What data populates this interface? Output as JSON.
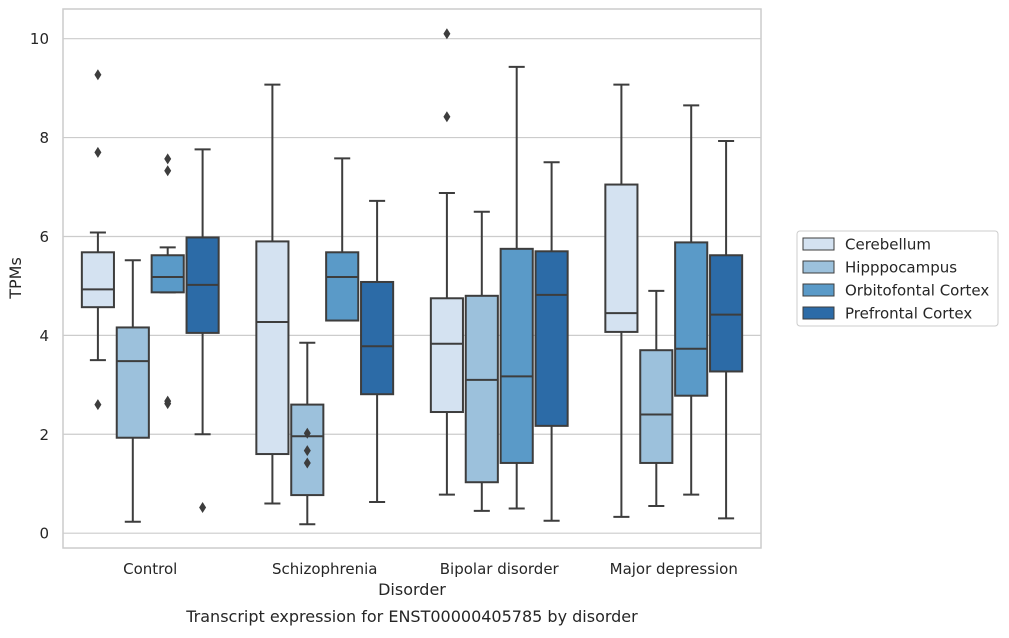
{
  "chart_data": {
    "type": "box",
    "title": "",
    "caption": "Transcript expression for ENST00000405785 by disorder",
    "xlabel": "Disorder",
    "ylabel": "TPMs",
    "ylim": [
      -0.3,
      10.6
    ],
    "yticks": [
      0,
      2,
      4,
      6,
      8,
      10
    ],
    "grid": "horizontal",
    "legend_position": "right",
    "categories": [
      "Control",
      "Schizophrenia",
      "Bipolar disorder",
      "Major depression"
    ],
    "series": [
      {
        "name": "Cerebellum",
        "color": "#d4e2f1",
        "boxes": [
          {
            "whislo": 3.5,
            "q1": 4.57,
            "med": 4.93,
            "q3": 5.68,
            "whishi": 6.08,
            "fliers": [
              9.27,
              7.7,
              2.6
            ]
          },
          {
            "whislo": 0.6,
            "q1": 1.6,
            "med": 4.27,
            "q3": 5.9,
            "whishi": 9.07,
            "fliers": []
          },
          {
            "whislo": 0.78,
            "q1": 2.45,
            "med": 3.83,
            "q3": 4.75,
            "whishi": 6.88,
            "fliers": [
              10.1,
              8.42
            ]
          },
          {
            "whislo": 0.33,
            "q1": 4.07,
            "med": 4.45,
            "q3": 7.05,
            "whishi": 9.07,
            "fliers": []
          }
        ]
      },
      {
        "name": "Hipppocampus",
        "color": "#9cc1dc",
        "boxes": [
          {
            "whislo": 0.23,
            "q1": 1.93,
            "med": 3.48,
            "q3": 4.16,
            "whishi": 5.52,
            "fliers": []
          },
          {
            "whislo": 0.18,
            "q1": 0.77,
            "med": 1.96,
            "q3": 2.6,
            "whishi": 3.85,
            "fliers": [
              2.02,
              1.67,
              1.42
            ]
          },
          {
            "whislo": 0.45,
            "q1": 1.03,
            "med": 3.1,
            "q3": 4.8,
            "whishi": 6.5,
            "fliers": []
          },
          {
            "whislo": 0.55,
            "q1": 1.42,
            "med": 2.4,
            "q3": 3.7,
            "whishi": 4.9,
            "fliers": []
          }
        ]
      },
      {
        "name": "Orbitofontal Cortex",
        "color": "#5a9ac8",
        "boxes": [
          {
            "whislo": 4.87,
            "q1": 4.87,
            "med": 5.18,
            "q3": 5.62,
            "whishi": 5.78,
            "fliers": [
              7.57,
              7.33,
              2.67,
              2.62
            ]
          },
          {
            "whislo": 4.3,
            "q1": 4.3,
            "med": 5.18,
            "q3": 5.68,
            "whishi": 7.58,
            "fliers": []
          },
          {
            "whislo": 0.5,
            "q1": 1.42,
            "med": 3.17,
            "q3": 5.75,
            "whishi": 9.43,
            "fliers": []
          },
          {
            "whislo": 0.78,
            "q1": 2.78,
            "med": 3.73,
            "q3": 5.88,
            "whishi": 8.65,
            "fliers": []
          }
        ]
      },
      {
        "name": "Prefrontal Cortex",
        "color": "#2c6ba7",
        "boxes": [
          {
            "whislo": 2.0,
            "q1": 4.05,
            "med": 5.02,
            "q3": 5.98,
            "whishi": 7.76,
            "fliers": [
              0.52
            ]
          },
          {
            "whislo": 0.63,
            "q1": 2.81,
            "med": 3.78,
            "q3": 5.08,
            "whishi": 6.72,
            "fliers": []
          },
          {
            "whislo": 0.25,
            "q1": 2.17,
            "med": 4.82,
            "q3": 5.7,
            "whishi": 7.5,
            "fliers": []
          },
          {
            "whislo": 0.3,
            "q1": 3.27,
            "med": 4.42,
            "q3": 5.62,
            "whishi": 7.93,
            "fliers": []
          }
        ]
      }
    ]
  }
}
